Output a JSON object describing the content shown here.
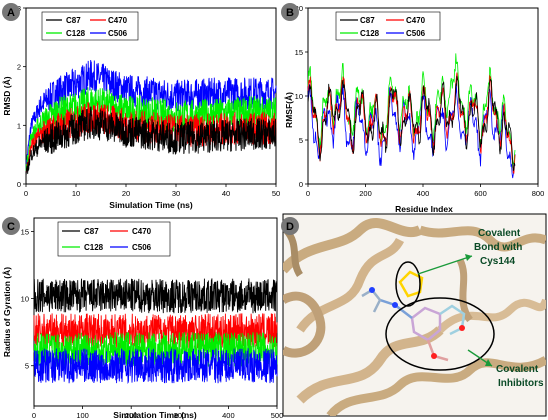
{
  "series_colors": {
    "C87": "#000000",
    "C470": "#ff0000",
    "C128": "#00ee00",
    "C506": "#0000ff"
  },
  "chart_data": [
    {
      "panel": "A",
      "type": "line",
      "xlabel": "Simulation Time (ns)",
      "ylabel": "RMSD (Å)",
      "xlim": [
        0,
        50
      ],
      "ylim": [
        0,
        3
      ],
      "xticks": [
        "0",
        "10",
        "20",
        "30",
        "40",
        "50"
      ],
      "yticks": [
        "0",
        "1",
        "2",
        "3"
      ],
      "legend": [
        "C87",
        "C470",
        "C128",
        "C506"
      ],
      "series": [
        {
          "name": "C87",
          "x": [
            0,
            1,
            3,
            6,
            10,
            13,
            16,
            20,
            25,
            30,
            35,
            40,
            45,
            50
          ],
          "y": [
            0.15,
            0.5,
            0.7,
            0.8,
            0.95,
            1.05,
            1.0,
            0.9,
            0.85,
            0.78,
            0.8,
            0.82,
            0.85,
            0.85
          ]
        },
        {
          "name": "C470",
          "x": [
            0,
            1,
            3,
            6,
            10,
            13,
            16,
            20,
            25,
            30,
            35,
            40,
            45,
            50
          ],
          "y": [
            0.2,
            0.65,
            0.85,
            0.95,
            1.05,
            1.15,
            1.1,
            1.0,
            0.95,
            0.9,
            0.92,
            0.94,
            0.95,
            0.95
          ]
        },
        {
          "name": "C128",
          "x": [
            0,
            1,
            3,
            6,
            10,
            13,
            16,
            20,
            25,
            30,
            35,
            40,
            45,
            50
          ],
          "y": [
            0.25,
            0.8,
            1.05,
            1.2,
            1.3,
            1.4,
            1.35,
            1.25,
            1.2,
            1.15,
            1.17,
            1.2,
            1.22,
            1.22
          ]
        },
        {
          "name": "C506",
          "x": [
            0,
            1,
            3,
            6,
            10,
            13,
            16,
            20,
            25,
            30,
            35,
            40,
            45,
            50
          ],
          "y": [
            0.3,
            1.0,
            1.35,
            1.55,
            1.7,
            1.85,
            1.75,
            1.6,
            1.55,
            1.5,
            1.52,
            1.55,
            1.55,
            1.55
          ]
        }
      ]
    },
    {
      "panel": "B",
      "type": "line",
      "xlabel": "Residue Index",
      "ylabel": "RMSF(Å)",
      "xlim": [
        0,
        800
      ],
      "ylim": [
        0,
        20
      ],
      "xticks": [
        "0",
        "200",
        "400",
        "600",
        "800"
      ],
      "yticks": [
        "0",
        "5",
        "10",
        "15",
        "20"
      ],
      "legend": [
        "C87",
        "C470",
        "C128",
        "C506"
      ],
      "series": [
        {
          "name": "C87",
          "x": [
            0,
            50,
            100,
            150,
            200,
            250,
            300,
            350,
            400,
            450,
            500,
            550,
            600,
            650,
            700,
            720
          ],
          "y": [
            9,
            6,
            10,
            7,
            8,
            6,
            9,
            7,
            8,
            7,
            9,
            8,
            7,
            9,
            4,
            5
          ]
        },
        {
          "name": "C470",
          "x": [
            0,
            50,
            100,
            150,
            200,
            250,
            300,
            350,
            400,
            450,
            500,
            550,
            600,
            650,
            700,
            720
          ],
          "y": [
            9,
            6,
            10,
            7,
            8,
            6,
            9,
            7,
            8,
            7,
            9,
            8,
            7,
            9,
            4,
            5
          ]
        },
        {
          "name": "C128",
          "x": [
            0,
            50,
            100,
            150,
            200,
            250,
            300,
            350,
            400,
            450,
            500,
            550,
            600,
            650,
            700,
            720
          ],
          "y": [
            10,
            7,
            11,
            8,
            9,
            7,
            10,
            8,
            9,
            8,
            12,
            9,
            8,
            10,
            5,
            6
          ]
        },
        {
          "name": "C506",
          "x": [
            0,
            50,
            100,
            150,
            200,
            250,
            300,
            350,
            400,
            450,
            500,
            550,
            600,
            650,
            700,
            720
          ],
          "y": [
            8,
            5,
            9,
            6,
            7,
            5,
            8,
            6,
            7,
            6,
            8,
            7,
            6,
            8,
            3,
            4
          ]
        }
      ]
    },
    {
      "panel": "C",
      "type": "line",
      "xlabel": "Simulation Time (ns)",
      "ylabel": "Radius of Gyration (Å)",
      "xlim": [
        0,
        500
      ],
      "ylim": [
        2,
        16
      ],
      "xticks": [
        "0",
        "100",
        "200",
        "300",
        "400",
        "500"
      ],
      "yticks": [
        "5",
        "10",
        "15"
      ],
      "legend": [
        "C87",
        "C470",
        "C128",
        "C506"
      ],
      "series": [
        {
          "name": "C87",
          "x": [
            0,
            100,
            200,
            300,
            400,
            500
          ],
          "y": [
            10.2,
            10.2,
            10.2,
            10.2,
            10.2,
            10.2
          ]
        },
        {
          "name": "C470",
          "x": [
            0,
            100,
            200,
            300,
            400,
            500
          ],
          "y": [
            7.6,
            7.6,
            7.6,
            7.6,
            7.6,
            7.6
          ]
        },
        {
          "name": "C128",
          "x": [
            0,
            100,
            200,
            300,
            400,
            500
          ],
          "y": [
            6.2,
            6.2,
            6.2,
            6.2,
            6.2,
            6.2
          ]
        },
        {
          "name": "C506",
          "x": [
            0,
            100,
            200,
            300,
            400,
            500
          ],
          "y": [
            5.0,
            5.0,
            5.0,
            5.0,
            5.0,
            5.0
          ]
        }
      ]
    }
  ],
  "panel_labels": {
    "a": "A",
    "b": "B",
    "c": "C",
    "d": "D"
  },
  "structure": {
    "annotation1_line1": "Covalent",
    "annotation1_line2": "Bond with",
    "annotation1_line3": "Cys144",
    "annotation2_line1": "Covalent",
    "annotation2_line2": "Inhibitors"
  }
}
